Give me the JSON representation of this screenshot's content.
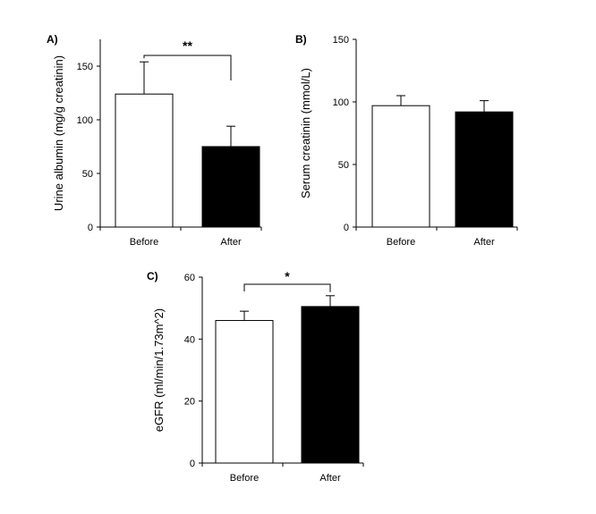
{
  "chart_data": [
    {
      "type": "bar",
      "panel_label": "A)",
      "categories": [
        "Before",
        "After"
      ],
      "values": [
        124,
        75
      ],
      "errors": [
        30,
        19
      ],
      "bar_colors": [
        "#ffffff",
        "#000000"
      ],
      "ylabel": "Urine albumin (mg/g creatinin)",
      "ylim": [
        0,
        175
      ],
      "yticks": [
        0,
        50,
        100,
        150
      ],
      "significance": "**",
      "grid": false
    },
    {
      "type": "bar",
      "panel_label": "B)",
      "categories": [
        "Before",
        "After"
      ],
      "values": [
        97,
        92
      ],
      "errors": [
        8,
        9
      ],
      "bar_colors": [
        "#ffffff",
        "#000000"
      ],
      "ylabel": "Serum creatinin (mmol/L)",
      "ylim": [
        0,
        150
      ],
      "yticks": [
        0,
        50,
        100,
        150
      ],
      "significance": "",
      "grid": false
    },
    {
      "type": "bar",
      "panel_label": "C)",
      "categories": [
        "Before",
        "After"
      ],
      "values": [
        46,
        50.5
      ],
      "errors": [
        3,
        3.5
      ],
      "bar_colors": [
        "#ffffff",
        "#000000"
      ],
      "ylabel": "eGFR (ml/min/1.73m^2)",
      "ylim": [
        0,
        60
      ],
      "yticks": [
        0,
        20,
        40,
        60
      ],
      "significance": "*",
      "grid": false
    }
  ]
}
